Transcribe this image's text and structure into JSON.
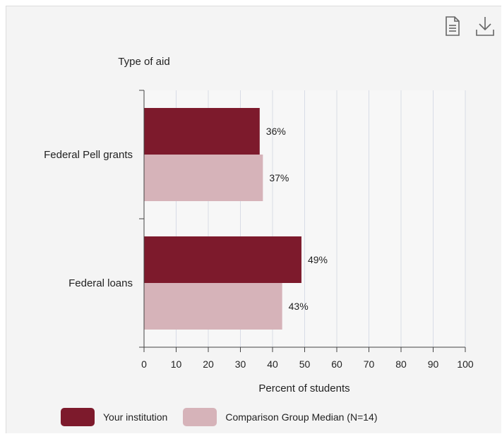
{
  "toolbar": {
    "document_icon": "document-icon",
    "download_icon": "download-icon"
  },
  "chart_data": {
    "type": "bar",
    "orientation": "horizontal",
    "y_axis_title": "Type of aid",
    "xlabel": "Percent of students",
    "xlim": [
      0,
      100
    ],
    "x_ticks": [
      0,
      10,
      20,
      30,
      40,
      50,
      60,
      70,
      80,
      90,
      100
    ],
    "categories": [
      "Federal Pell grants",
      "Federal loans"
    ],
    "series": [
      {
        "name": "Your institution",
        "color": "#7d1a2c",
        "values": [
          36,
          49
        ],
        "labels": [
          "36%",
          "49%"
        ]
      },
      {
        "name": "Comparison Group Median (N=14)",
        "color": "#d6b3b9",
        "values": [
          37,
          43
        ],
        "labels": [
          "37%",
          "43%"
        ]
      }
    ],
    "grid": true,
    "legend_position": "bottom"
  }
}
